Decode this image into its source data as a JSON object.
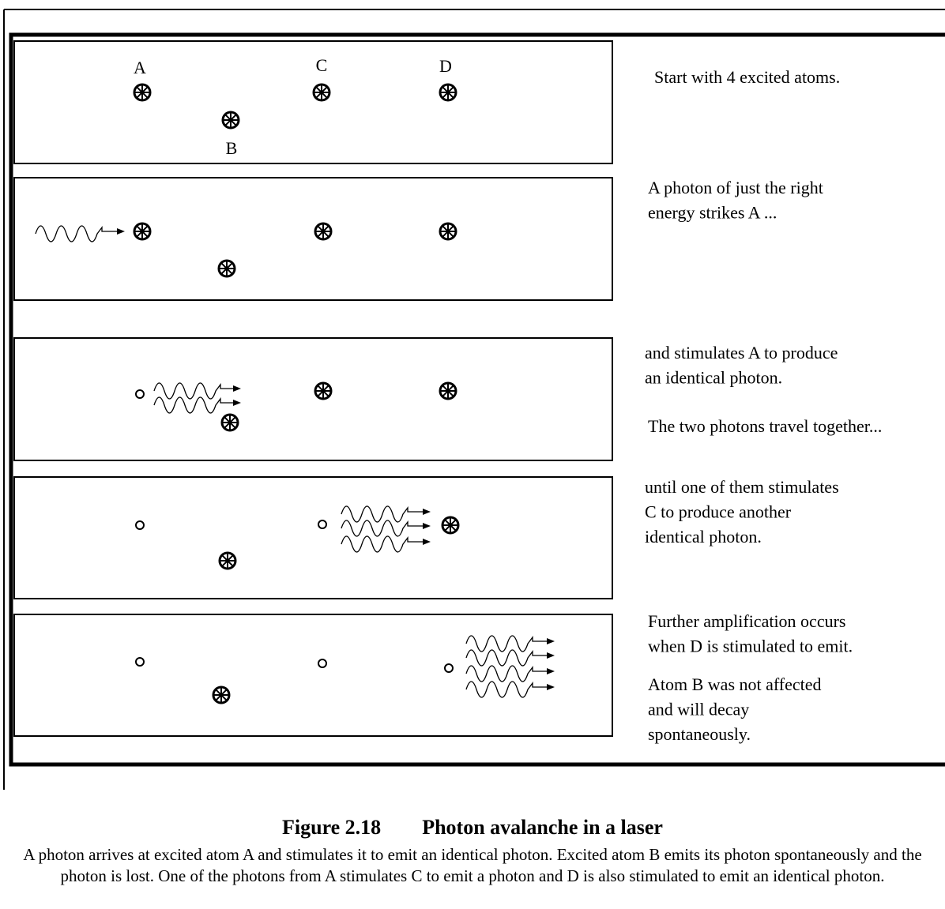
{
  "atom_labels": [
    "A",
    "B",
    "C",
    "D"
  ],
  "panels": [
    {
      "paragraphs": [
        [
          "Start with 4 excited atoms."
        ]
      ]
    },
    {
      "paragraphs": [
        [
          "A photon of just the right",
          "energy strikes A ..."
        ]
      ]
    },
    {
      "paragraphs": [
        [
          "and stimulates A to produce",
          "an identical photon."
        ],
        [
          "The two photons travel together..."
        ]
      ]
    },
    {
      "paragraphs": [
        [
          "until one of them stimulates",
          "C to produce another",
          "identical photon."
        ]
      ]
    },
    {
      "paragraphs": [
        [
          "Further amplification occurs",
          "when D is stimulated to emit."
        ],
        [
          "Atom B was not affected",
          "and will decay",
          "spontaneously."
        ]
      ]
    }
  ],
  "caption": {
    "number": "Figure 2.18",
    "title": "Photon avalanche in a laser",
    "body": "A photon arrives at excited atom A and stimulates it to emit an identical photon.  Excited atom B emits its photon spontaneously and the photon is lost.  One of the photons from A stimulates C to emit a photon and D is also stimulated to emit an identical photon."
  }
}
